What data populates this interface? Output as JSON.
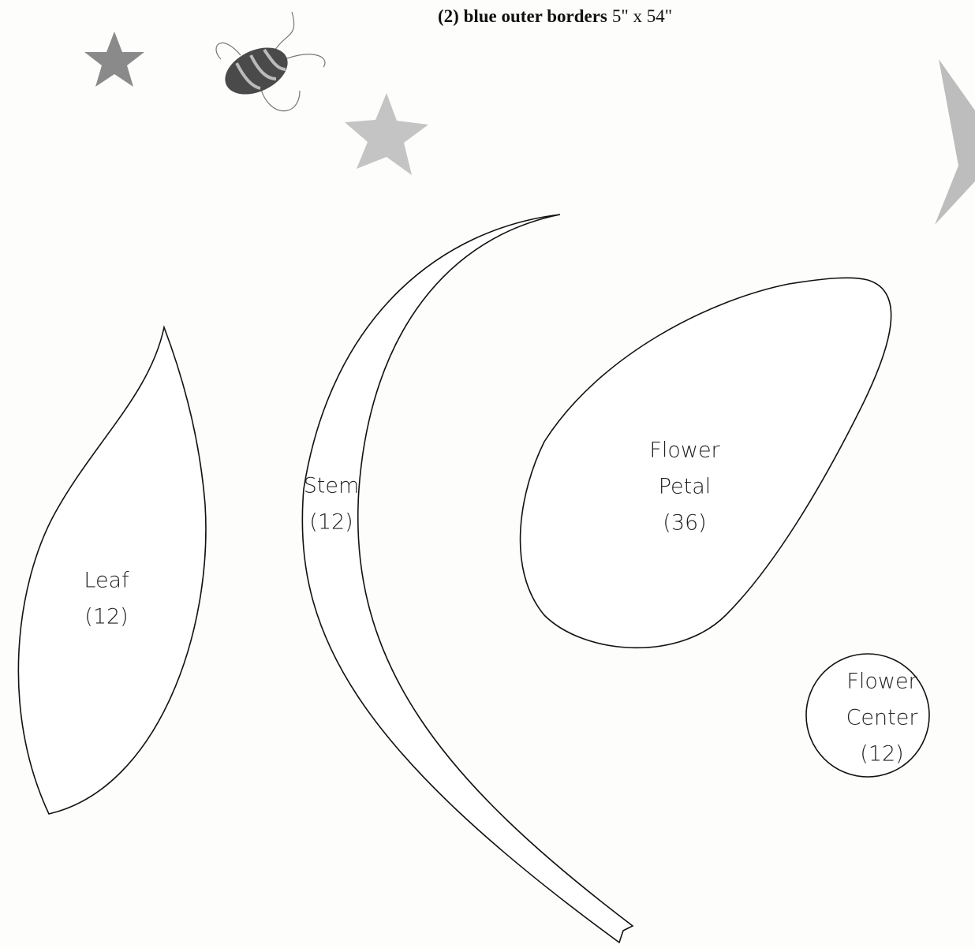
{
  "header": {
    "bold": "(2) blue outer borders",
    "text": "5\" x 54\""
  },
  "pieces": [
    {
      "label": [
        "Leaf",
        "(12)"
      ]
    },
    {
      "label": [
        "Stem",
        "(12)"
      ]
    },
    {
      "label": [
        "Flower",
        "Petal",
        "(36)"
      ]
    },
    {
      "label": [
        "Flower",
        "Center",
        "(12)"
      ]
    }
  ]
}
